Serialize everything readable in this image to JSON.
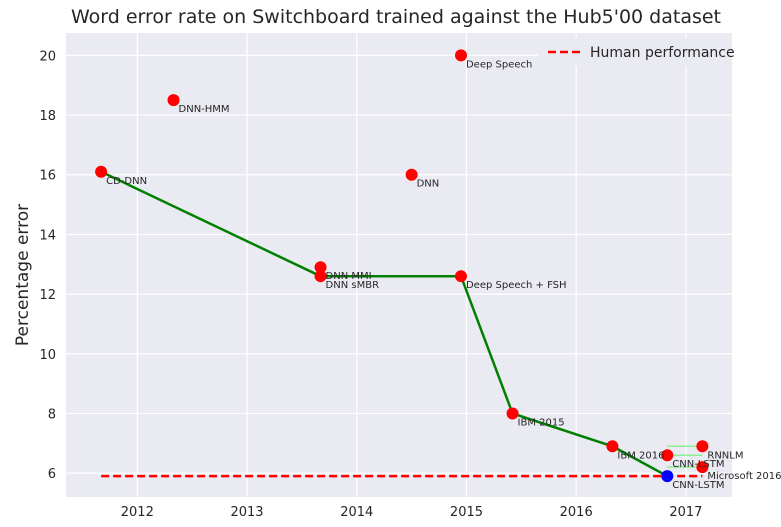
{
  "chart_data": {
    "type": "scatter",
    "title": "Word error rate on Switchboard trained against the Hub5'00 dataset",
    "xlabel": "",
    "ylabel": "Percentage error",
    "xlim": [
      2011.35,
      2017.42
    ],
    "ylim": [
      5.2,
      20.75
    ],
    "xticks": [
      2012,
      2013,
      2014,
      2015,
      2016,
      2017
    ],
    "yticks": [
      6,
      8,
      10,
      12,
      14,
      16,
      18,
      20
    ],
    "grid": true,
    "legend_position": "top-right",
    "points": [
      {
        "x": 2011.67,
        "y": 16.1,
        "label": "CD-DNN",
        "color": "#ff0000"
      },
      {
        "x": 2012.33,
        "y": 18.5,
        "label": "DNN-HMM",
        "color": "#ff0000"
      },
      {
        "x": 2013.67,
        "y": 12.9,
        "label": "DNN MMI",
        "color": "#ff0000"
      },
      {
        "x": 2013.67,
        "y": 12.6,
        "label": "DNN sMBR",
        "color": "#ff0000"
      },
      {
        "x": 2014.5,
        "y": 16.0,
        "label": "DNN",
        "color": "#ff0000"
      },
      {
        "x": 2014.95,
        "y": 20.0,
        "label": "Deep Speech",
        "color": "#ff0000"
      },
      {
        "x": 2014.95,
        "y": 12.6,
        "label": "Deep Speech + FSH",
        "color": "#ff0000"
      },
      {
        "x": 2015.42,
        "y": 8.0,
        "label": "IBM 2015",
        "color": "#ff0000"
      },
      {
        "x": 2016.33,
        "y": 6.9,
        "label": "IBM 2016",
        "color": "#ff0000"
      },
      {
        "x": 2016.83,
        "y": 6.6,
        "label": "CNN-LSTM",
        "color": "#ff0000"
      },
      {
        "x": 2017.15,
        "y": 6.9,
        "label": "RNNLM",
        "color": "#ff0000"
      },
      {
        "x": 2017.15,
        "y": 6.2,
        "label": "Microsoft 2016",
        "color": "#ff0000"
      },
      {
        "x": 2016.83,
        "y": 5.9,
        "label": "CNN-LSTM",
        "color": "#0000ff"
      }
    ],
    "series": [
      {
        "name": "",
        "type": "line",
        "color": "#008000",
        "x": [
          2011.67,
          2013.67,
          2014.95,
          2015.42,
          2016.33,
          2016.83
        ],
        "y": [
          16.1,
          12.6,
          12.6,
          8.0,
          6.9,
          5.9
        ]
      },
      {
        "name": "Human performance",
        "type": "hline",
        "color": "#ff0000",
        "y": 5.9,
        "x": [
          2011.67,
          2017.15
        ]
      }
    ],
    "error_bars": [
      {
        "x_from": 2016.83,
        "x_to": 2017.15,
        "y": 6.9,
        "color": "#90ee90"
      },
      {
        "x_from": 2016.83,
        "x_to": 2017.15,
        "y": 6.6,
        "color": "#90ee90"
      },
      {
        "x_from": 2016.83,
        "x_to": 2017.15,
        "y": 6.2,
        "color": "#90ee90"
      }
    ]
  }
}
